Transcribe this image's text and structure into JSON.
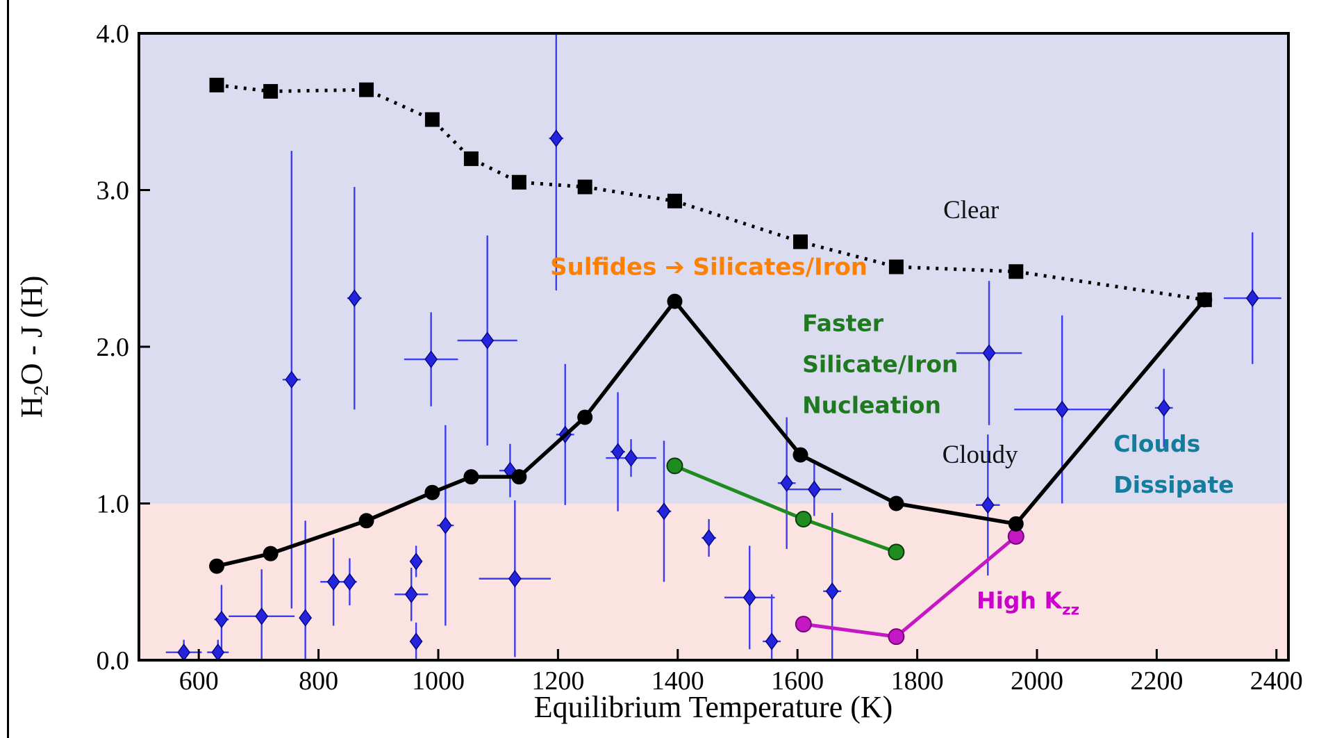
{
  "page": {
    "background": "#ffffff",
    "left_border_color": "#000000"
  },
  "chart_data": {
    "type": "line",
    "title": "",
    "xlabel": "Equilibrium Temperature (K)",
    "ylabel": "H2O - J (H)",
    "ylabel_parts": [
      {
        "t": "H"
      },
      {
        "t": "2",
        "sub": true
      },
      {
        "t": "O - J (H)"
      }
    ],
    "xlim": [
      500,
      2420
    ],
    "ylim": [
      0,
      4
    ],
    "grid": false,
    "legend": "none",
    "xticks": [
      600,
      800,
      1000,
      1200,
      1400,
      1600,
      1800,
      2000,
      2200,
      2400
    ],
    "xtick_labels": [
      "600",
      "800",
      "1000",
      "1200",
      "1400",
      "1600",
      "1800",
      "2000",
      "2200",
      "2400"
    ],
    "yticks": [
      0,
      1,
      2,
      3,
      4
    ],
    "ytick_labels": [
      "0.0",
      "1.0",
      "2.0",
      "3.0",
      "4.0"
    ],
    "regions": [
      {
        "name": "upper-blue-region",
        "y0": 1.0,
        "y1": 4.0,
        "color": "#dcdcf1"
      },
      {
        "name": "lower-pink-region",
        "y0": 0.0,
        "y1": 1.0,
        "color": "#fbe3e1"
      }
    ],
    "series": [
      {
        "id": "fast-nucleation-model",
        "name": "Faster Silicate/Iron Nucleation",
        "style": "solid",
        "marker": "circle",
        "color": "#1e8c1e",
        "marker_edge": "#0a3a0a",
        "width": 5,
        "points": [
          [
            1395,
            1.24
          ],
          [
            1610,
            0.9
          ],
          [
            1765,
            0.69
          ]
        ]
      },
      {
        "id": "high-kzz-model",
        "name": "High Kzz",
        "style": "solid",
        "marker": "circle",
        "color": "#c518c5",
        "marker_edge": "#7a007a",
        "width": 5,
        "points": [
          [
            1610,
            0.23
          ],
          [
            1765,
            0.15
          ],
          [
            1965,
            0.79
          ]
        ]
      },
      {
        "id": "cloudy-model",
        "name": "Cloudy",
        "style": "solid",
        "marker": "circle",
        "color": "#000000",
        "marker_edge": "none",
        "width": 5.5,
        "points": [
          [
            630,
            0.6
          ],
          [
            720,
            0.68
          ],
          [
            880,
            0.89
          ],
          [
            990,
            1.07
          ],
          [
            1055,
            1.17
          ],
          [
            1135,
            1.17
          ],
          [
            1245,
            1.55
          ],
          [
            1395,
            2.29
          ],
          [
            1605,
            1.31
          ],
          [
            1765,
            1.0
          ],
          [
            1965,
            0.87
          ],
          [
            2280,
            2.3
          ]
        ]
      },
      {
        "id": "clear-model",
        "name": "Clear",
        "style": "dotted",
        "marker": "square",
        "color": "#000000",
        "marker_edge": "none",
        "width": 5,
        "points": [
          [
            630,
            3.67
          ],
          [
            720,
            3.63
          ],
          [
            880,
            3.64
          ],
          [
            990,
            3.45
          ],
          [
            1055,
            3.2
          ],
          [
            1135,
            3.05
          ],
          [
            1245,
            3.02
          ],
          [
            1395,
            2.93
          ],
          [
            1605,
            2.67
          ],
          [
            1765,
            2.51
          ],
          [
            1965,
            2.48
          ],
          [
            2280,
            2.3
          ]
        ]
      }
    ],
    "scatter": {
      "name": "observed-planets",
      "marker": "diamond",
      "color": "#2424dd",
      "edge_color": "#000080",
      "error_color": "#3c3cf0",
      "point_format": "[x, y, xerr, yerr]",
      "points": [
        [
          575,
          0.05,
          30,
          0.08
        ],
        [
          632,
          0.05,
          18,
          0.08
        ],
        [
          638,
          0.26,
          12,
          0.22
        ],
        [
          705,
          0.28,
          55,
          0.3
        ],
        [
          755,
          1.79,
          15,
          1.46
        ],
        [
          778,
          0.27,
          10,
          0.62
        ],
        [
          825,
          0.5,
          22,
          0.28
        ],
        [
          852,
          0.5,
          12,
          0.15
        ],
        [
          860,
          2.31,
          12,
          0.71
        ],
        [
          955,
          0.42,
          28,
          0.17
        ],
        [
          963,
          0.63,
          10,
          0.1
        ],
        [
          963,
          0.12,
          10,
          0.12
        ],
        [
          988,
          1.92,
          45,
          0.3
        ],
        [
          1012,
          0.86,
          14,
          0.64
        ],
        [
          1082,
          2.04,
          50,
          0.67
        ],
        [
          1120,
          1.21,
          18,
          0.17
        ],
        [
          1128,
          0.52,
          60,
          0.5
        ],
        [
          1197,
          3.33,
          12,
          0.97
        ],
        [
          1212,
          1.44,
          15,
          0.45
        ],
        [
          1300,
          1.33,
          12,
          0.38
        ],
        [
          1322,
          1.29,
          42,
          0.12
        ],
        [
          1377,
          0.95,
          12,
          0.45
        ],
        [
          1452,
          0.78,
          12,
          0.12
        ],
        [
          1520,
          0.4,
          42,
          0.33
        ],
        [
          1557,
          0.12,
          15,
          0.3
        ],
        [
          1582,
          1.13,
          15,
          0.42
        ],
        [
          1628,
          1.09,
          45,
          0.17
        ],
        [
          1658,
          0.44,
          15,
          0.5
        ],
        [
          1920,
          1.96,
          55,
          0.46
        ],
        [
          1918,
          0.99,
          20,
          0.45
        ],
        [
          2042,
          1.6,
          80,
          0.6
        ],
        [
          2212,
          1.61,
          15,
          0.25
        ],
        [
          2360,
          2.31,
          48,
          0.42
        ]
      ]
    },
    "annotations": [
      {
        "id": "sulfides-label",
        "text": "Sulfides ➔ Silicates/Iron",
        "x": 1452,
        "y": 2.46,
        "anchor": "middle",
        "color": "#ff8000",
        "font": "sans",
        "size": 34
      },
      {
        "id": "clear-label",
        "text": "Clear",
        "x": 1890,
        "y": 2.82,
        "anchor": "middle",
        "color": "#111111",
        "font": "serif",
        "size": 37
      },
      {
        "id": "nucleation-label",
        "lines": [
          "Faster",
          "Silicate/Iron",
          "Nucleation"
        ],
        "x": 1608,
        "y": 2.1,
        "line_step": 0.262,
        "anchor": "start",
        "color": "#1f7a1f",
        "font": "sans",
        "size": 33
      },
      {
        "id": "cloudy-label",
        "text": "Cloudy",
        "x": 1905,
        "y": 1.26,
        "anchor": "middle",
        "color": "#111111",
        "font": "serif",
        "size": 37
      },
      {
        "id": "dissipate-label",
        "lines": [
          "Clouds",
          "Dissipate"
        ],
        "x": 2128,
        "y": 1.33,
        "line_step": 0.262,
        "anchor": "start",
        "color": "#147c9c",
        "font": "sans",
        "size": 33
      },
      {
        "id": "high-kzz-label",
        "text": "High K",
        "sub": "zz",
        "x": 1985,
        "y": 0.33,
        "anchor": "middle",
        "color": "#cc00cc",
        "font": "sans",
        "size": 33
      }
    ]
  }
}
